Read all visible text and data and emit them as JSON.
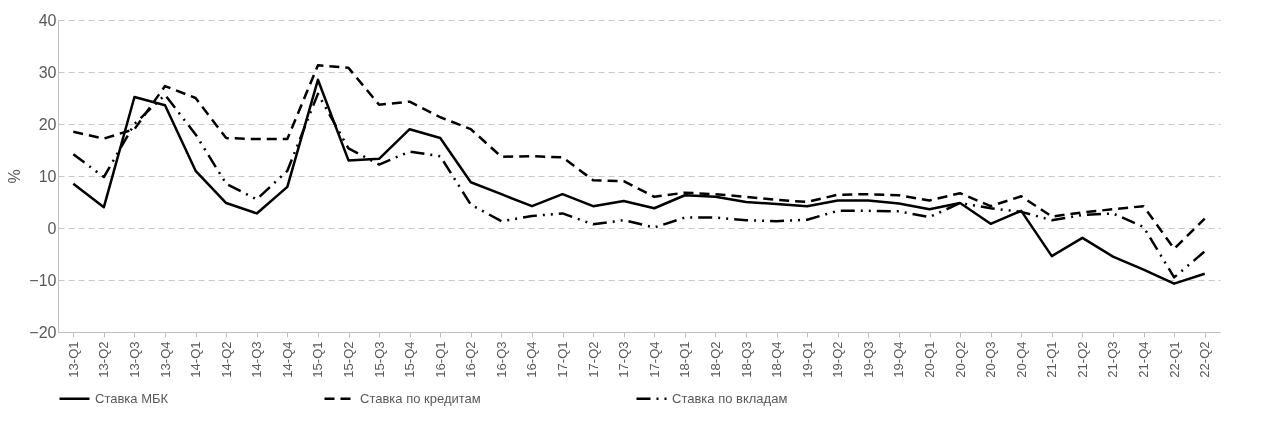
{
  "chart_data": {
    "type": "line",
    "ylabel": "%",
    "categories": [
      "13-Q1",
      "13-Q2",
      "13-Q3",
      "13-Q4",
      "14-Q1",
      "14-Q2",
      "14-Q3",
      "14-Q4",
      "15-Q1",
      "15-Q2",
      "15-Q3",
      "15-Q4",
      "16-Q1",
      "16-Q2",
      "16-Q3",
      "16-Q4",
      "17-Q1",
      "17-Q2",
      "17-Q3",
      "17-Q4",
      "18-Q1",
      "18-Q2",
      "18-Q3",
      "18-Q4",
      "19-Q1",
      "19-Q2",
      "19-Q3",
      "19-Q4",
      "20-Q1",
      "20-Q2",
      "20-Q3",
      "20-Q4",
      "21-Q1",
      "21-Q2",
      "21-Q3",
      "21-Q4",
      "22-Q1",
      "22-Q2"
    ],
    "series": [
      {
        "name": "Ставка МБК",
        "color": "#000000",
        "line_style": "solid",
        "values": [
          8.5,
          4,
          25.2,
          23.6,
          11,
          4.8,
          2.8,
          7.9,
          28.5,
          13,
          13.3,
          19,
          17.3,
          8.8,
          6.5,
          4.2,
          6.5,
          4.2,
          5.2,
          3.8,
          6.3,
          6,
          5,
          4.6,
          4.2,
          5.3,
          5.3,
          4.7,
          3.6,
          4.8,
          0.8,
          3.3,
          -5.4,
          -1.9,
          -5.5,
          -8,
          -10.7,
          -8.8
        ]
      },
      {
        "name": "Ставка по кредитам",
        "color": "#000000",
        "line_style": "dashed",
        "values": [
          18.5,
          17.2,
          19,
          27.3,
          25,
          17.3,
          17.1,
          17.1,
          31.3,
          30.8,
          23.7,
          24.3,
          21.3,
          19,
          13.7,
          13.8,
          13.6,
          9.2,
          9,
          6,
          6.8,
          6.5,
          6,
          5.4,
          5,
          6.4,
          6.5,
          6.3,
          5.3,
          6.7,
          4.2,
          6.1,
          2.2,
          3,
          3.6,
          4.2,
          -4,
          1.8
        ]
      },
      {
        "name": "Ставка по вкладам",
        "color": "#000000",
        "line_style": "dashdot",
        "values": [
          14.2,
          9.8,
          20,
          25.6,
          18,
          8.5,
          5.5,
          11,
          25.8,
          15.3,
          12.2,
          14.7,
          13.8,
          4.5,
          1.3,
          2.3,
          2.8,
          0.7,
          1.5,
          0.1,
          2,
          2,
          1.5,
          1.3,
          1.6,
          3.3,
          3.3,
          3.2,
          2.1,
          4.8,
          3.8,
          3.1,
          1.5,
          2.5,
          2.8,
          0.2,
          -9.5,
          -4.5
        ]
      }
    ],
    "ylim": [
      -20,
      40
    ],
    "yticks": [
      -20,
      -10,
      0,
      10,
      20,
      30,
      40
    ],
    "grid": "y",
    "legend": "bottom"
  }
}
